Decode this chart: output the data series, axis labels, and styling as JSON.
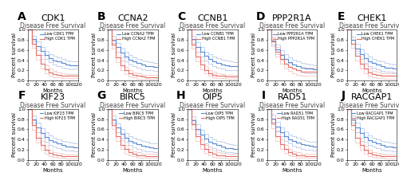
{
  "panels": [
    {
      "label": "A",
      "title": "CDK1"
    },
    {
      "label": "B",
      "title": "CCNA2"
    },
    {
      "label": "C",
      "title": "CCNB1"
    },
    {
      "label": "D",
      "title": "PPP2R1A"
    },
    {
      "label": "E",
      "title": "CHEK1"
    },
    {
      "label": "F",
      "title": "KIF23"
    },
    {
      "label": "G",
      "title": "BIRC5"
    },
    {
      "label": "H",
      "title": "OIP5"
    },
    {
      "label": "I",
      "title": "RAD51"
    },
    {
      "label": "J",
      "title": "RACGAP1"
    }
  ],
  "subtitle": "Disease Free Survival",
  "xlabel": "Months",
  "ylabel": "Percent survival",
  "color_low": "#5B8DD9",
  "color_high": "#E8736A",
  "color_ci_low": "#AABFE8",
  "color_ci_high": "#F0BBBB",
  "xlim": [
    0,
    120
  ],
  "ylim": [
    0,
    1
  ],
  "xticks": [
    0,
    20,
    40,
    60,
    80,
    100,
    120
  ],
  "yticks": [
    0.0,
    0.2,
    0.4,
    0.6,
    0.8,
    1.0
  ],
  "yticklabels": [
    "0.0",
    "0.2",
    "0.4",
    "0.6",
    "0.8",
    "1.0"
  ],
  "bg_color": "#ffffff",
  "panel_label_fontsize": 10,
  "gene_title_fontsize": 8,
  "subtitle_fontsize": 5.5,
  "tick_fontsize": 4.5,
  "axis_label_fontsize": 5.0,
  "legend_fontsize": 3.5,
  "curves": [
    {
      "low_x": [
        0,
        10,
        20,
        30,
        40,
        50,
        60,
        70,
        80,
        90,
        100,
        110,
        120
      ],
      "low_y": [
        1.0,
        0.82,
        0.68,
        0.58,
        0.5,
        0.44,
        0.4,
        0.37,
        0.34,
        0.32,
        0.3,
        0.3,
        0.3
      ],
      "high_x": [
        0,
        10,
        20,
        30,
        40,
        50,
        60,
        70,
        80,
        90,
        100,
        110,
        120
      ],
      "high_y": [
        1.0,
        0.72,
        0.5,
        0.33,
        0.22,
        0.16,
        0.13,
        0.11,
        0.1,
        0.09,
        0.09,
        0.09,
        0.09
      ],
      "low_ci_u": [
        1.0,
        0.88,
        0.76,
        0.66,
        0.58,
        0.52,
        0.48,
        0.45,
        0.42,
        0.4,
        0.38,
        0.37,
        0.37
      ],
      "low_ci_l": [
        1.0,
        0.76,
        0.6,
        0.5,
        0.42,
        0.36,
        0.32,
        0.29,
        0.26,
        0.24,
        0.22,
        0.23,
        0.23
      ],
      "high_ci_u": [
        1.0,
        0.8,
        0.59,
        0.42,
        0.3,
        0.23,
        0.19,
        0.16,
        0.15,
        0.13,
        0.13,
        0.13,
        0.13
      ],
      "high_ci_l": [
        1.0,
        0.64,
        0.41,
        0.24,
        0.14,
        0.09,
        0.07,
        0.06,
        0.05,
        0.05,
        0.05,
        0.05,
        0.05
      ]
    },
    {
      "low_x": [
        0,
        10,
        20,
        30,
        40,
        50,
        60,
        70,
        80,
        90,
        100,
        110,
        120
      ],
      "low_y": [
        1.0,
        0.8,
        0.65,
        0.55,
        0.47,
        0.41,
        0.37,
        0.34,
        0.31,
        0.29,
        0.28,
        0.27,
        0.27
      ],
      "high_x": [
        0,
        10,
        20,
        30,
        40,
        50,
        60,
        70,
        80,
        90,
        100,
        110,
        120
      ],
      "high_y": [
        1.0,
        0.7,
        0.46,
        0.3,
        0.2,
        0.14,
        0.11,
        0.09,
        0.08,
        0.07,
        0.07,
        0.07,
        0.07
      ],
      "low_ci_u": [
        1.0,
        0.87,
        0.74,
        0.64,
        0.56,
        0.5,
        0.46,
        0.43,
        0.4,
        0.38,
        0.36,
        0.35,
        0.35
      ],
      "low_ci_l": [
        1.0,
        0.73,
        0.56,
        0.46,
        0.38,
        0.32,
        0.28,
        0.25,
        0.22,
        0.2,
        0.2,
        0.19,
        0.19
      ],
      "high_ci_u": [
        1.0,
        0.78,
        0.56,
        0.39,
        0.27,
        0.2,
        0.16,
        0.14,
        0.12,
        0.11,
        0.11,
        0.11,
        0.11
      ],
      "high_ci_l": [
        1.0,
        0.62,
        0.36,
        0.21,
        0.13,
        0.08,
        0.06,
        0.04,
        0.04,
        0.03,
        0.03,
        0.03,
        0.03
      ]
    },
    {
      "low_x": [
        0,
        10,
        20,
        30,
        40,
        50,
        60,
        70,
        80,
        90,
        100,
        110,
        120
      ],
      "low_y": [
        1.0,
        0.81,
        0.66,
        0.56,
        0.48,
        0.42,
        0.38,
        0.35,
        0.32,
        0.3,
        0.29,
        0.28,
        0.28
      ],
      "high_x": [
        0,
        10,
        20,
        30,
        40,
        50,
        60,
        70,
        80,
        90,
        100,
        110,
        120
      ],
      "high_y": [
        1.0,
        0.71,
        0.47,
        0.31,
        0.21,
        0.15,
        0.12,
        0.1,
        0.09,
        0.08,
        0.08,
        0.08,
        0.08
      ],
      "low_ci_u": [
        1.0,
        0.88,
        0.75,
        0.65,
        0.57,
        0.51,
        0.47,
        0.44,
        0.41,
        0.39,
        0.37,
        0.36,
        0.36
      ],
      "low_ci_l": [
        1.0,
        0.74,
        0.57,
        0.47,
        0.39,
        0.33,
        0.29,
        0.26,
        0.23,
        0.21,
        0.21,
        0.2,
        0.2
      ],
      "high_ci_u": [
        1.0,
        0.79,
        0.57,
        0.4,
        0.28,
        0.21,
        0.17,
        0.15,
        0.13,
        0.12,
        0.12,
        0.12,
        0.12
      ],
      "high_ci_l": [
        1.0,
        0.63,
        0.37,
        0.22,
        0.14,
        0.09,
        0.07,
        0.05,
        0.05,
        0.04,
        0.04,
        0.04,
        0.04
      ]
    },
    {
      "low_x": [
        0,
        10,
        20,
        30,
        40,
        50,
        60,
        70,
        80,
        90,
        100,
        110,
        120
      ],
      "low_y": [
        1.0,
        0.78,
        0.61,
        0.5,
        0.42,
        0.36,
        0.32,
        0.29,
        0.26,
        0.24,
        0.23,
        0.22,
        0.22
      ],
      "high_x": [
        0,
        10,
        20,
        30,
        40,
        50,
        60,
        70,
        80,
        90,
        100,
        110,
        120
      ],
      "high_y": [
        1.0,
        0.76,
        0.56,
        0.42,
        0.33,
        0.27,
        0.23,
        0.2,
        0.18,
        0.17,
        0.17,
        0.17,
        0.17
      ],
      "low_ci_u": [
        1.0,
        0.85,
        0.7,
        0.59,
        0.51,
        0.45,
        0.41,
        0.38,
        0.35,
        0.33,
        0.31,
        0.3,
        0.3
      ],
      "low_ci_l": [
        1.0,
        0.71,
        0.52,
        0.41,
        0.33,
        0.27,
        0.23,
        0.2,
        0.17,
        0.15,
        0.15,
        0.14,
        0.14
      ],
      "high_ci_u": [
        1.0,
        0.84,
        0.65,
        0.51,
        0.42,
        0.35,
        0.31,
        0.28,
        0.26,
        0.25,
        0.25,
        0.25,
        0.25
      ],
      "high_ci_l": [
        1.0,
        0.68,
        0.47,
        0.33,
        0.24,
        0.19,
        0.15,
        0.12,
        0.1,
        0.09,
        0.09,
        0.09,
        0.09
      ]
    },
    {
      "low_x": [
        0,
        10,
        20,
        30,
        40,
        50,
        60,
        70,
        80,
        90,
        100,
        110,
        120
      ],
      "low_y": [
        1.0,
        0.79,
        0.63,
        0.52,
        0.44,
        0.38,
        0.34,
        0.31,
        0.28,
        0.26,
        0.25,
        0.24,
        0.24
      ],
      "high_x": [
        0,
        10,
        20,
        30,
        40,
        50,
        60,
        70,
        80,
        90,
        100,
        110,
        120
      ],
      "high_y": [
        1.0,
        0.72,
        0.49,
        0.33,
        0.23,
        0.16,
        0.13,
        0.11,
        0.1,
        0.09,
        0.09,
        0.09,
        0.09
      ],
      "low_ci_u": [
        1.0,
        0.86,
        0.72,
        0.61,
        0.53,
        0.47,
        0.43,
        0.4,
        0.37,
        0.35,
        0.33,
        0.32,
        0.32
      ],
      "low_ci_l": [
        1.0,
        0.72,
        0.54,
        0.43,
        0.35,
        0.29,
        0.25,
        0.22,
        0.19,
        0.17,
        0.17,
        0.16,
        0.16
      ],
      "high_ci_u": [
        1.0,
        0.8,
        0.58,
        0.42,
        0.31,
        0.23,
        0.19,
        0.17,
        0.15,
        0.14,
        0.14,
        0.14,
        0.14
      ],
      "high_ci_l": [
        1.0,
        0.64,
        0.4,
        0.24,
        0.15,
        0.09,
        0.07,
        0.05,
        0.05,
        0.04,
        0.04,
        0.04,
        0.04
      ]
    },
    {
      "low_x": [
        0,
        10,
        20,
        30,
        40,
        50,
        60,
        70,
        80,
        90,
        100,
        110,
        120
      ],
      "low_y": [
        1.0,
        0.8,
        0.64,
        0.53,
        0.45,
        0.39,
        0.35,
        0.32,
        0.29,
        0.27,
        0.26,
        0.25,
        0.25
      ],
      "high_x": [
        0,
        10,
        20,
        30,
        40,
        50,
        60,
        70,
        80,
        90,
        100,
        110,
        120
      ],
      "high_y": [
        1.0,
        0.68,
        0.44,
        0.29,
        0.2,
        0.14,
        0.11,
        0.09,
        0.08,
        0.07,
        0.07,
        0.07,
        0.07
      ],
      "low_ci_u": [
        1.0,
        0.87,
        0.73,
        0.62,
        0.54,
        0.48,
        0.44,
        0.41,
        0.38,
        0.36,
        0.34,
        0.33,
        0.33
      ],
      "low_ci_l": [
        1.0,
        0.73,
        0.55,
        0.44,
        0.36,
        0.3,
        0.26,
        0.23,
        0.2,
        0.18,
        0.18,
        0.17,
        0.17
      ],
      "high_ci_u": [
        1.0,
        0.77,
        0.54,
        0.38,
        0.28,
        0.2,
        0.16,
        0.14,
        0.12,
        0.11,
        0.11,
        0.11,
        0.11
      ],
      "high_ci_l": [
        1.0,
        0.59,
        0.34,
        0.2,
        0.12,
        0.08,
        0.06,
        0.04,
        0.04,
        0.03,
        0.03,
        0.03,
        0.03
      ]
    },
    {
      "low_x": [
        0,
        10,
        20,
        30,
        40,
        50,
        60,
        70,
        80,
        90,
        100,
        110,
        120
      ],
      "low_y": [
        1.0,
        0.8,
        0.63,
        0.52,
        0.44,
        0.38,
        0.34,
        0.31,
        0.28,
        0.26,
        0.25,
        0.24,
        0.24
      ],
      "high_x": [
        0,
        10,
        20,
        30,
        40,
        50,
        60,
        70,
        80,
        90,
        100,
        110,
        120
      ],
      "high_y": [
        1.0,
        0.69,
        0.46,
        0.3,
        0.21,
        0.15,
        0.12,
        0.1,
        0.09,
        0.08,
        0.08,
        0.08,
        0.08
      ],
      "low_ci_u": [
        1.0,
        0.87,
        0.72,
        0.61,
        0.53,
        0.47,
        0.43,
        0.4,
        0.37,
        0.35,
        0.33,
        0.32,
        0.32
      ],
      "low_ci_l": [
        1.0,
        0.73,
        0.54,
        0.43,
        0.35,
        0.29,
        0.25,
        0.22,
        0.19,
        0.17,
        0.17,
        0.16,
        0.16
      ],
      "high_ci_u": [
        1.0,
        0.78,
        0.55,
        0.39,
        0.29,
        0.21,
        0.17,
        0.15,
        0.13,
        0.12,
        0.12,
        0.12,
        0.12
      ],
      "high_ci_l": [
        1.0,
        0.6,
        0.37,
        0.21,
        0.13,
        0.09,
        0.07,
        0.05,
        0.05,
        0.04,
        0.04,
        0.04,
        0.04
      ]
    },
    {
      "low_x": [
        0,
        10,
        20,
        30,
        40,
        50,
        60,
        70,
        80,
        90,
        100,
        110,
        120
      ],
      "low_y": [
        1.0,
        0.78,
        0.61,
        0.5,
        0.42,
        0.36,
        0.32,
        0.29,
        0.26,
        0.24,
        0.23,
        0.22,
        0.22
      ],
      "high_x": [
        0,
        10,
        20,
        30,
        40,
        50,
        60,
        70,
        80,
        90,
        100,
        110,
        120
      ],
      "high_y": [
        1.0,
        0.7,
        0.47,
        0.31,
        0.22,
        0.16,
        0.12,
        0.1,
        0.09,
        0.08,
        0.08,
        0.08,
        0.08
      ],
      "low_ci_u": [
        1.0,
        0.85,
        0.7,
        0.59,
        0.51,
        0.45,
        0.41,
        0.38,
        0.35,
        0.33,
        0.31,
        0.3,
        0.3
      ],
      "low_ci_l": [
        1.0,
        0.71,
        0.52,
        0.41,
        0.33,
        0.27,
        0.23,
        0.2,
        0.17,
        0.15,
        0.15,
        0.14,
        0.14
      ],
      "high_ci_u": [
        1.0,
        0.79,
        0.57,
        0.4,
        0.3,
        0.22,
        0.18,
        0.16,
        0.14,
        0.13,
        0.13,
        0.13,
        0.13
      ],
      "high_ci_l": [
        1.0,
        0.61,
        0.37,
        0.22,
        0.14,
        0.1,
        0.06,
        0.04,
        0.04,
        0.03,
        0.03,
        0.03,
        0.03
      ]
    },
    {
      "low_x": [
        0,
        10,
        20,
        30,
        40,
        50,
        60,
        70,
        80,
        90,
        100,
        110,
        120
      ],
      "low_y": [
        1.0,
        0.81,
        0.65,
        0.55,
        0.47,
        0.41,
        0.37,
        0.34,
        0.31,
        0.29,
        0.28,
        0.27,
        0.27
      ],
      "high_x": [
        0,
        10,
        20,
        30,
        40,
        50,
        60,
        70,
        80,
        90,
        100,
        110,
        120
      ],
      "high_y": [
        1.0,
        0.71,
        0.47,
        0.31,
        0.22,
        0.16,
        0.12,
        0.1,
        0.09,
        0.08,
        0.08,
        0.08,
        0.08
      ],
      "low_ci_u": [
        1.0,
        0.88,
        0.74,
        0.64,
        0.56,
        0.5,
        0.46,
        0.43,
        0.4,
        0.38,
        0.36,
        0.35,
        0.35
      ],
      "low_ci_l": [
        1.0,
        0.74,
        0.56,
        0.46,
        0.38,
        0.32,
        0.28,
        0.25,
        0.22,
        0.2,
        0.2,
        0.19,
        0.19
      ],
      "high_ci_u": [
        1.0,
        0.8,
        0.57,
        0.4,
        0.3,
        0.22,
        0.17,
        0.15,
        0.13,
        0.12,
        0.12,
        0.12,
        0.12
      ],
      "high_ci_l": [
        1.0,
        0.62,
        0.37,
        0.22,
        0.14,
        0.1,
        0.07,
        0.05,
        0.05,
        0.04,
        0.04,
        0.04,
        0.04
      ]
    },
    {
      "low_x": [
        0,
        10,
        20,
        30,
        40,
        50,
        60,
        70,
        80,
        90,
        100,
        110,
        120
      ],
      "low_y": [
        1.0,
        0.8,
        0.64,
        0.53,
        0.45,
        0.39,
        0.35,
        0.32,
        0.29,
        0.27,
        0.26,
        0.25,
        0.25
      ],
      "high_x": [
        0,
        10,
        20,
        30,
        40,
        50,
        60,
        70,
        80,
        90,
        100,
        110,
        120
      ],
      "high_y": [
        1.0,
        0.68,
        0.44,
        0.29,
        0.2,
        0.14,
        0.11,
        0.09,
        0.08,
        0.07,
        0.07,
        0.07,
        0.07
      ],
      "low_ci_u": [
        1.0,
        0.87,
        0.73,
        0.62,
        0.54,
        0.48,
        0.44,
        0.41,
        0.38,
        0.36,
        0.34,
        0.33,
        0.33
      ],
      "low_ci_l": [
        1.0,
        0.73,
        0.55,
        0.44,
        0.36,
        0.3,
        0.26,
        0.23,
        0.2,
        0.18,
        0.18,
        0.17,
        0.17
      ],
      "high_ci_u": [
        1.0,
        0.77,
        0.54,
        0.38,
        0.28,
        0.2,
        0.16,
        0.14,
        0.12,
        0.11,
        0.11,
        0.11,
        0.11
      ],
      "high_ci_l": [
        1.0,
        0.59,
        0.34,
        0.2,
        0.12,
        0.08,
        0.06,
        0.04,
        0.04,
        0.03,
        0.03,
        0.03,
        0.03
      ]
    }
  ]
}
